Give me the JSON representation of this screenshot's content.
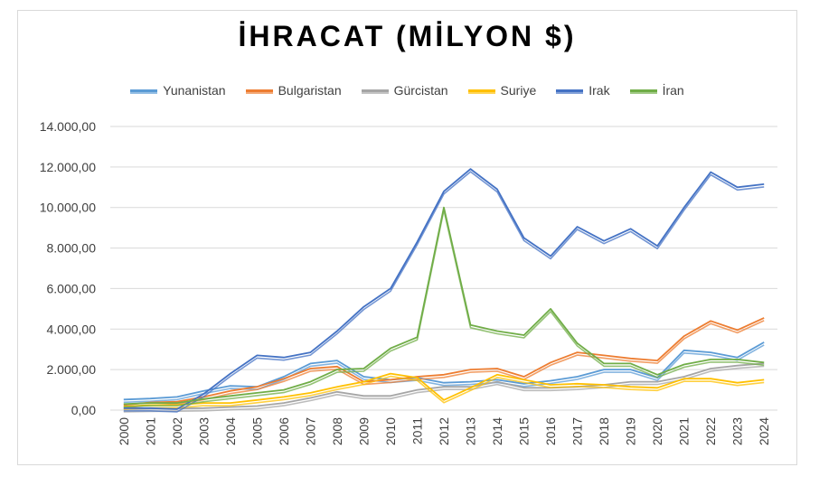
{
  "chart_data": {
    "type": "line",
    "title": "İHRACAT (MİLYON $)",
    "x": [
      "2000",
      "2001",
      "2002",
      "2003",
      "2004",
      "2005",
      "2006",
      "2007",
      "2008",
      "2009",
      "2010",
      "2011",
      "2012",
      "2013",
      "2014",
      "2015",
      "2016",
      "2017",
      "2018",
      "2019",
      "2020",
      "2021",
      "2022",
      "2023",
      "2024"
    ],
    "ylim": [
      0,
      14000
    ],
    "yticks": [
      0,
      2000,
      4000,
      6000,
      8000,
      10000,
      12000,
      14000
    ],
    "ytick_labels": [
      "0,00",
      "2.000,00",
      "4.000,00",
      "6.000,00",
      "8.000,00",
      "10.000,00",
      "12.000,00",
      "14.000,00"
    ],
    "grid": "horizontal",
    "legend": "top",
    "series": [
      {
        "name": "Yunanistan",
        "color": "#5b9bd5",
        "values": [
          520,
          570,
          650,
          950,
          1200,
          1150,
          1650,
          2300,
          2450,
          1650,
          1500,
          1600,
          1350,
          1400,
          1500,
          1300,
          1450,
          1650,
          2000,
          2000,
          1600,
          2950,
          2850,
          2600,
          3350
        ]
      },
      {
        "name": "Bulgaristan",
        "color": "#ed7d31",
        "values": [
          250,
          380,
          420,
          650,
          950,
          1150,
          1550,
          2050,
          2150,
          1400,
          1500,
          1650,
          1750,
          2000,
          2050,
          1650,
          2350,
          2850,
          2700,
          2550,
          2450,
          3650,
          4400,
          3950,
          4550
        ]
      },
      {
        "name": "Gürcistan",
        "color": "#a5a5a5",
        "values": [
          50,
          70,
          80,
          100,
          150,
          200,
          350,
          600,
          900,
          700,
          700,
          1000,
          1150,
          1150,
          1400,
          1100,
          1100,
          1150,
          1250,
          1400,
          1400,
          1650,
          2050,
          2200,
          2300
        ]
      },
      {
        "name": "Suriye",
        "color": "#ffc000",
        "values": [
          180,
          250,
          250,
          350,
          350,
          500,
          650,
          850,
          1150,
          1400,
          1800,
          1600,
          500,
          1100,
          1750,
          1500,
          1250,
          1300,
          1250,
          1150,
          1100,
          1550,
          1550,
          1350,
          1500
        ]
      },
      {
        "name": "Irak",
        "color": "#4472c4",
        "values": [
          100,
          100,
          50,
          800,
          1800,
          2700,
          2600,
          2850,
          3900,
          5100,
          6000,
          8300,
          10800,
          11900,
          10900,
          8500,
          7600,
          9050,
          8350,
          8950,
          8100,
          10000,
          11750,
          11000,
          11150
        ]
      },
      {
        "name": "İran",
        "color": "#70ad47",
        "values": [
          300,
          350,
          350,
          550,
          700,
          850,
          1000,
          1400,
          2000,
          2050,
          3050,
          3600,
          10000,
          4200,
          3900,
          3700,
          5000,
          3300,
          2300,
          2300,
          1750,
          2250,
          2500,
          2500,
          2350
        ]
      }
    ]
  }
}
